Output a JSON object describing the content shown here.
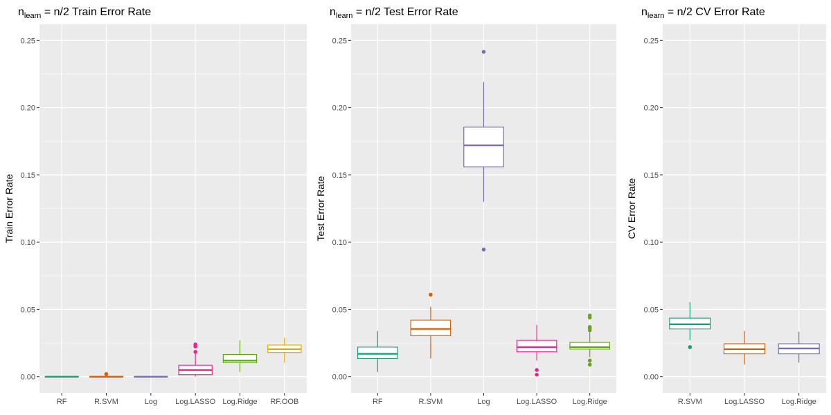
{
  "chart_data": [
    {
      "type": "box",
      "title_prefix": "n",
      "title_subscript": "learn",
      "title_suffix": " = n/2  Train Error Rate",
      "ylabel": "Train Error Rate",
      "xlabel": "",
      "ylim": [
        -0.012,
        0.262
      ],
      "yticks": [
        "0.00",
        "0.05",
        "0.10",
        "0.15",
        "0.20",
        "0.25"
      ],
      "ytick_values": [
        0,
        0.05,
        0.1,
        0.15,
        0.2,
        0.25
      ],
      "grid": true,
      "categories": [
        "RF",
        "R.SVM",
        "Log",
        "Log.LASSO",
        "Log.Ridge",
        "RF.OOB"
      ],
      "colors": [
        "#1b9e77",
        "#d95f02",
        "#7570b3",
        "#e7298a",
        "#66a61e",
        "#e6ab02"
      ],
      "boxes": [
        {
          "min": 0.0,
          "q1": 0.0,
          "median": 0.0,
          "q3": 0.0,
          "max": 0.0,
          "outliers": []
        },
        {
          "min": 0.0,
          "q1": 0.0,
          "median": 0.0,
          "q3": 0.0,
          "max": 0.0,
          "outliers": [
            0.002
          ]
        },
        {
          "min": 0.0,
          "q1": 0.0,
          "median": 0.0,
          "q3": 0.0,
          "max": 0.0,
          "outliers": []
        },
        {
          "min": 0.0,
          "q1": 0.0015,
          "median": 0.005,
          "q3": 0.0085,
          "max": 0.0175,
          "outliers": [
            0.0185,
            0.0225,
            0.024
          ]
        },
        {
          "min": 0.0035,
          "q1": 0.0105,
          "median": 0.012,
          "q3": 0.0165,
          "max": 0.027,
          "outliers": []
        },
        {
          "min": 0.0105,
          "q1": 0.018,
          "median": 0.0205,
          "q3": 0.0235,
          "max": 0.029,
          "outliers": []
        }
      ]
    },
    {
      "type": "box",
      "title_prefix": "n",
      "title_subscript": "learn",
      "title_suffix": " = n/2  Test Error Rate",
      "ylabel": "Test Error Rate",
      "xlabel": "",
      "ylim": [
        -0.012,
        0.262
      ],
      "yticks": [
        "0.00",
        "0.05",
        "0.10",
        "0.15",
        "0.20",
        "0.25"
      ],
      "ytick_values": [
        0,
        0.05,
        0.1,
        0.15,
        0.2,
        0.25
      ],
      "grid": true,
      "categories": [
        "RF",
        "R.SVM",
        "Log",
        "Log.LASSO",
        "Log.Ridge"
      ],
      "colors": [
        "#1b9e77",
        "#d95f02",
        "#7570b3",
        "#e7298a",
        "#66a61e"
      ],
      "boxes": [
        {
          "min": 0.0035,
          "q1": 0.0135,
          "median": 0.017,
          "q3": 0.022,
          "max": 0.034,
          "outliers": []
        },
        {
          "min": 0.0135,
          "q1": 0.0305,
          "median": 0.0355,
          "q3": 0.042,
          "max": 0.052,
          "outliers": [
            0.061
          ]
        },
        {
          "min": 0.13,
          "q1": 0.156,
          "median": 0.172,
          "q3": 0.1855,
          "max": 0.219,
          "outliers": [
            0.0945,
            0.2415
          ]
        },
        {
          "min": 0.012,
          "q1": 0.0185,
          "median": 0.022,
          "q3": 0.027,
          "max": 0.0385,
          "outliers": [
            0.0015,
            0.005
          ]
        },
        {
          "min": 0.0145,
          "q1": 0.0205,
          "median": 0.022,
          "q3": 0.0255,
          "max": 0.033,
          "outliers": [
            0.009,
            0.012,
            0.0345,
            0.036,
            0.037,
            0.044,
            0.0455
          ]
        }
      ]
    },
    {
      "type": "box",
      "title_prefix": "n",
      "title_subscript": "learn",
      "title_suffix": " = n/2  CV Error Rate",
      "ylabel": "CV Error Rate",
      "xlabel": "",
      "ylim": [
        -0.012,
        0.262
      ],
      "yticks": [
        "0.00",
        "0.05",
        "0.10",
        "0.15",
        "0.20",
        "0.25"
      ],
      "ytick_values": [
        0,
        0.05,
        0.1,
        0.15,
        0.2,
        0.25
      ],
      "grid": true,
      "categories": [
        "R.SVM",
        "Log.LASSO",
        "Log.Ridge"
      ],
      "colors": [
        "#1b9e77",
        "#d95f02",
        "#7570b3"
      ],
      "boxes": [
        {
          "min": 0.027,
          "q1": 0.0355,
          "median": 0.039,
          "q3": 0.0435,
          "max": 0.0555,
          "outliers": [
            0.022
          ]
        },
        {
          "min": 0.009,
          "q1": 0.017,
          "median": 0.0205,
          "q3": 0.0245,
          "max": 0.034,
          "outliers": []
        },
        {
          "min": 0.0105,
          "q1": 0.017,
          "median": 0.021,
          "q3": 0.0245,
          "max": 0.0335,
          "outliers": []
        }
      ]
    }
  ]
}
